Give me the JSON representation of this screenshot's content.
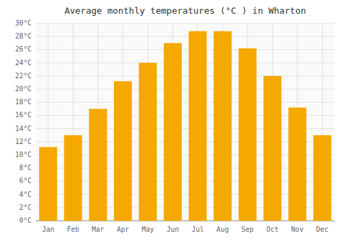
{
  "chart_data": {
    "type": "bar",
    "title": "Average monthly temperatures (°C ) in Wharton",
    "categories": [
      "Jan",
      "Feb",
      "Mar",
      "Apr",
      "May",
      "Jun",
      "Jul",
      "Aug",
      "Sep",
      "Oct",
      "Nov",
      "Dec"
    ],
    "values": [
      11.2,
      13.0,
      17.0,
      21.2,
      24.0,
      27.0,
      28.8,
      28.8,
      26.2,
      22.0,
      17.2,
      13.0
    ],
    "color": "#F5A800",
    "ylim": [
      0,
      30
    ],
    "yticks": [
      {
        "value": 0,
        "label": "0°C"
      },
      {
        "value": 2,
        "label": "2°C"
      },
      {
        "value": 4,
        "label": "4°C"
      },
      {
        "value": 6,
        "label": "6°C"
      },
      {
        "value": 8,
        "label": "8°C"
      },
      {
        "value": 10,
        "label": "10°C"
      },
      {
        "value": 12,
        "label": "12°C"
      },
      {
        "value": 14,
        "label": "14°C"
      },
      {
        "value": 16,
        "label": "16°C"
      },
      {
        "value": 18,
        "label": "18°C"
      },
      {
        "value": 20,
        "label": "20°C"
      },
      {
        "value": 22,
        "label": "22°C"
      },
      {
        "value": 24,
        "label": "24°C"
      },
      {
        "value": 26,
        "label": "26°C"
      },
      {
        "value": 28,
        "label": "28°C"
      },
      {
        "value": 30,
        "label": "30°C"
      }
    ],
    "grid": true
  }
}
